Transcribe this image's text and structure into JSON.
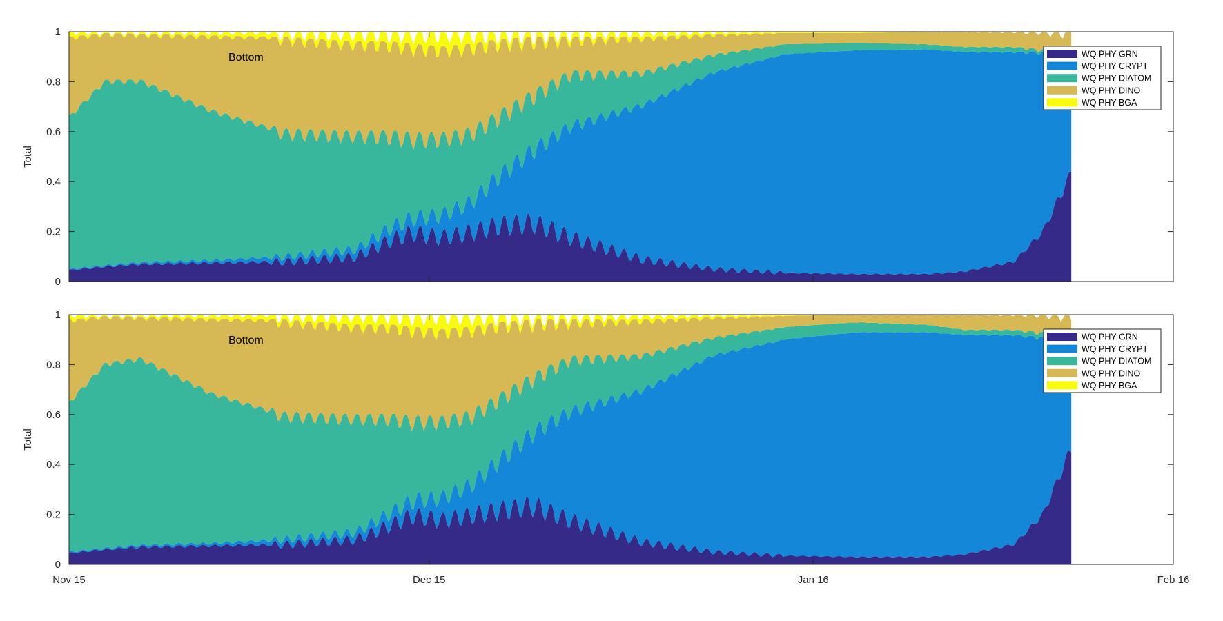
{
  "chart_data": [
    {
      "type": "area",
      "stacked": true,
      "ylabel": "Total",
      "ylim": [
        0,
        1
      ],
      "yticks": [
        "0",
        "0.2",
        "0.4",
        "0.6",
        "0.8",
        "1"
      ],
      "x_ticks": [],
      "annotation": "Bottom",
      "legend": {
        "position": "top-right",
        "entries": [
          "WQ PHY GRN",
          "WQ PHY CRYPT",
          "WQ PHY DIATOM",
          "WQ PHY DINO",
          "WQ PHY BGA"
        ]
      },
      "series": [
        {
          "name": "WQ PHY GRN",
          "color": "#352a87",
          "day": [
            0,
            5,
            10,
            20,
            30,
            40,
            45,
            48,
            52,
            56,
            60,
            65,
            70,
            80,
            90,
            100,
            110,
            120,
            125,
            132,
            136,
            140
          ],
          "values": [
            0.045,
            0.06,
            0.07,
            0.075,
            0.08,
            0.1,
            0.17,
            0.2,
            0.18,
            0.2,
            0.23,
            0.24,
            0.18,
            0.09,
            0.05,
            0.035,
            0.03,
            0.03,
            0.04,
            0.08,
            0.2,
            0.44
          ]
        },
        {
          "name": "WQ PHY CRYPT",
          "color": "#1487d9",
          "day": [
            0,
            5,
            10,
            20,
            30,
            40,
            45,
            48,
            52,
            56,
            60,
            65,
            70,
            80,
            90,
            100,
            110,
            120,
            125,
            132,
            136,
            140
          ],
          "values": [
            0.005,
            0.005,
            0.007,
            0.01,
            0.02,
            0.03,
            0.05,
            0.06,
            0.09,
            0.12,
            0.2,
            0.3,
            0.45,
            0.62,
            0.79,
            0.88,
            0.9,
            0.9,
            0.88,
            0.84,
            0.72,
            0.48
          ]
        },
        {
          "name": "WQ PHY DIATOM",
          "color": "#38b79d",
          "day": [
            0,
            5,
            10,
            20,
            30,
            40,
            45,
            48,
            52,
            56,
            60,
            65,
            70,
            80,
            90,
            100,
            110,
            120,
            125,
            132,
            136,
            140
          ],
          "values": [
            0.61,
            0.74,
            0.73,
            0.6,
            0.5,
            0.46,
            0.37,
            0.32,
            0.31,
            0.28,
            0.24,
            0.22,
            0.21,
            0.13,
            0.07,
            0.04,
            0.03,
            0.02,
            0.02,
            0.02,
            0.01,
            0.01
          ]
        },
        {
          "name": "WQ PHY DINO",
          "color": "#d6b955",
          "day": [
            0,
            5,
            10,
            20,
            30,
            40,
            45,
            48,
            52,
            56,
            60,
            65,
            70,
            80,
            90,
            100,
            110,
            120,
            125,
            132,
            136,
            140
          ],
          "values": [
            0.32,
            0.19,
            0.185,
            0.3,
            0.38,
            0.37,
            0.37,
            0.37,
            0.36,
            0.35,
            0.3,
            0.22,
            0.14,
            0.14,
            0.08,
            0.045,
            0.04,
            0.05,
            0.06,
            0.06,
            0.07,
            0.07
          ]
        },
        {
          "name": "WQ PHY BGA",
          "color": "#f9fb0e",
          "day": [
            0,
            5,
            10,
            20,
            30,
            40,
            45,
            48,
            52,
            56,
            60,
            65,
            70,
            80,
            90,
            100,
            110,
            120,
            125,
            132,
            136,
            140
          ],
          "values": [
            0.02,
            0.005,
            0.008,
            0.015,
            0.02,
            0.04,
            0.04,
            0.05,
            0.06,
            0.05,
            0.03,
            0.02,
            0.02,
            0.02,
            0.01,
            0.005,
            0.005,
            0.0,
            0.0,
            0.0,
            0.0,
            0.0
          ]
        }
      ]
    },
    {
      "type": "area",
      "stacked": true,
      "ylabel": "Total",
      "ylim": [
        0,
        1
      ],
      "yticks": [
        "0",
        "0.2",
        "0.4",
        "0.6",
        "0.8",
        "1"
      ],
      "x_ticks": [
        "Nov 15",
        "Dec 15",
        "Jan 16",
        "Feb 16"
      ],
      "annotation": "Bottom",
      "legend": {
        "position": "top-right",
        "entries": [
          "WQ PHY GRN",
          "WQ PHY CRYPT",
          "WQ PHY DIATOM",
          "WQ PHY DINO",
          "WQ PHY BGA"
        ]
      },
      "series": [
        {
          "name": "WQ PHY GRN",
          "color": "#352a87",
          "day": [
            0,
            5,
            10,
            20,
            30,
            40,
            45,
            48,
            52,
            56,
            60,
            65,
            70,
            80,
            90,
            100,
            110,
            120,
            125,
            132,
            136,
            140
          ],
          "values": [
            0.045,
            0.06,
            0.07,
            0.075,
            0.08,
            0.1,
            0.16,
            0.2,
            0.18,
            0.2,
            0.22,
            0.24,
            0.18,
            0.09,
            0.05,
            0.035,
            0.03,
            0.03,
            0.04,
            0.08,
            0.2,
            0.47
          ]
        },
        {
          "name": "WQ PHY CRYPT",
          "color": "#1487d9",
          "day": [
            0,
            5,
            10,
            20,
            30,
            40,
            45,
            48,
            52,
            56,
            60,
            65,
            70,
            80,
            90,
            100,
            110,
            120,
            125,
            132,
            136,
            140
          ],
          "values": [
            0.005,
            0.005,
            0.007,
            0.01,
            0.02,
            0.03,
            0.05,
            0.06,
            0.09,
            0.12,
            0.2,
            0.3,
            0.44,
            0.61,
            0.79,
            0.87,
            0.9,
            0.9,
            0.88,
            0.84,
            0.71,
            0.44
          ]
        },
        {
          "name": "WQ PHY DIATOM",
          "color": "#38b79d",
          "day": [
            0,
            5,
            10,
            20,
            30,
            40,
            45,
            48,
            52,
            56,
            60,
            65,
            70,
            80,
            90,
            100,
            110,
            120,
            125,
            132,
            136,
            140
          ],
          "values": [
            0.6,
            0.74,
            0.75,
            0.6,
            0.5,
            0.46,
            0.38,
            0.32,
            0.31,
            0.28,
            0.25,
            0.22,
            0.21,
            0.14,
            0.07,
            0.05,
            0.04,
            0.03,
            0.02,
            0.02,
            0.02,
            0.01
          ]
        },
        {
          "name": "WQ PHY DINO",
          "color": "#d6b955",
          "day": [
            0,
            5,
            10,
            20,
            30,
            40,
            45,
            48,
            52,
            56,
            60,
            65,
            70,
            80,
            90,
            100,
            110,
            120,
            125,
            132,
            136,
            140
          ],
          "values": [
            0.33,
            0.19,
            0.165,
            0.3,
            0.38,
            0.37,
            0.37,
            0.37,
            0.36,
            0.35,
            0.3,
            0.22,
            0.15,
            0.14,
            0.08,
            0.045,
            0.03,
            0.04,
            0.06,
            0.06,
            0.07,
            0.08
          ]
        },
        {
          "name": "WQ PHY BGA",
          "color": "#f9fb0e",
          "day": [
            0,
            5,
            10,
            20,
            30,
            40,
            45,
            48,
            52,
            56,
            60,
            65,
            70,
            80,
            90,
            100,
            110,
            120,
            125,
            132,
            136,
            140
          ],
          "values": [
            0.02,
            0.005,
            0.008,
            0.015,
            0.02,
            0.04,
            0.04,
            0.05,
            0.06,
            0.05,
            0.03,
            0.02,
            0.02,
            0.02,
            0.01,
            0.005,
            0.0,
            0.0,
            0.0,
            0.0,
            0.0,
            0.0
          ]
        }
      ]
    }
  ]
}
